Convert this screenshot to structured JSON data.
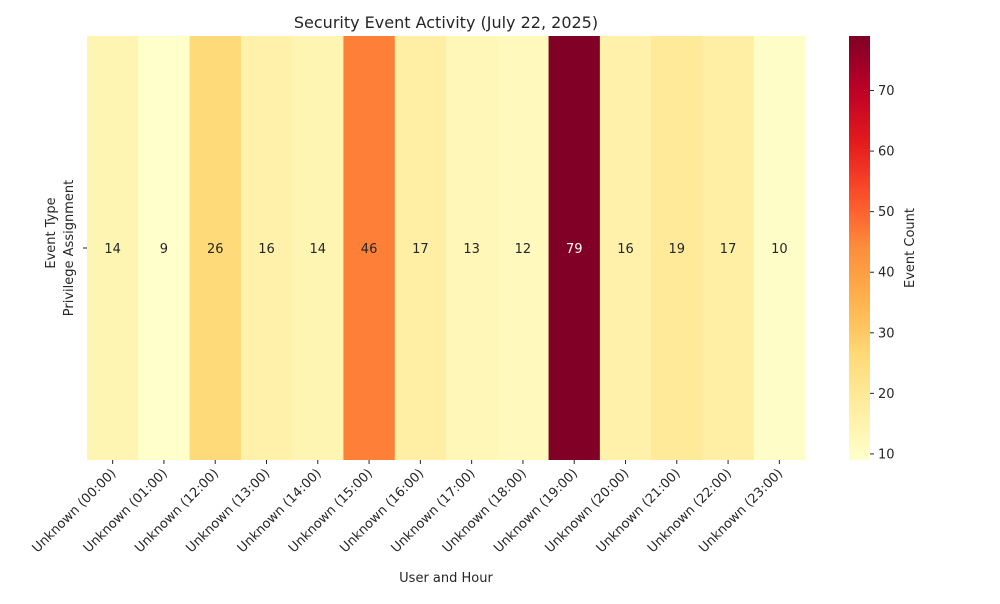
{
  "chart_data": {
    "type": "heatmap",
    "title": "Security Event Activity (July 22, 2025)",
    "xlabel": "User and Hour",
    "ylabel": "Event Type",
    "y_categories": [
      "Privilege Assignment"
    ],
    "x_categories": [
      "Unknown (00:00)",
      "Unknown (01:00)",
      "Unknown (12:00)",
      "Unknown (13:00)",
      "Unknown (14:00)",
      "Unknown (15:00)",
      "Unknown (16:00)",
      "Unknown (17:00)",
      "Unknown (18:00)",
      "Unknown (19:00)",
      "Unknown (20:00)",
      "Unknown (21:00)",
      "Unknown (22:00)",
      "Unknown (23:00)"
    ],
    "values": [
      [
        14,
        9,
        26,
        16,
        14,
        46,
        17,
        13,
        12,
        79,
        16,
        19,
        17,
        10
      ]
    ],
    "colorbar": {
      "label": "Event Count",
      "min": 9,
      "max": 79,
      "ticks": [
        10,
        20,
        30,
        40,
        50,
        60,
        70
      ],
      "colormap": "YlOrRd"
    }
  }
}
